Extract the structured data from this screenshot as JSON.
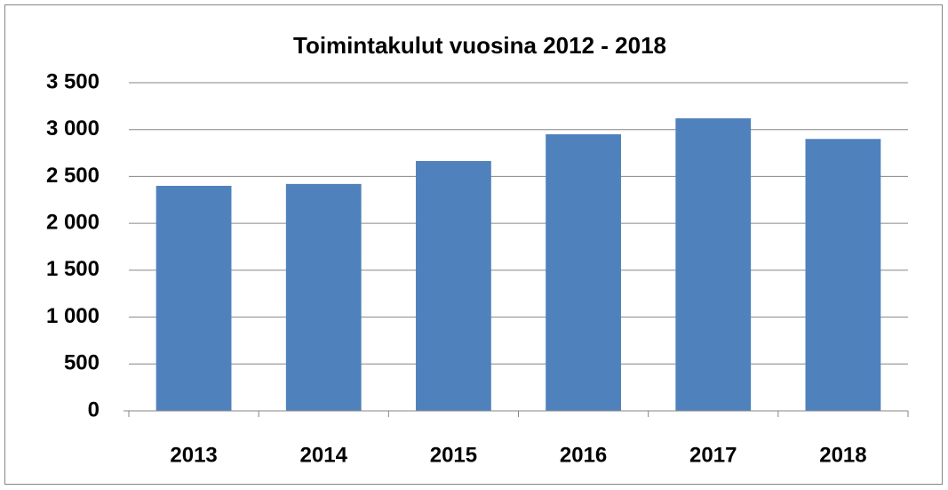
{
  "chart_data": {
    "type": "bar",
    "title": "Toimintakulut vuosina 2012 - 2018",
    "categories": [
      "2013",
      "2014",
      "2015",
      "2016",
      "2017",
      "2018"
    ],
    "values": [
      2400,
      2420,
      2665,
      2950,
      3120,
      2900
    ],
    "color": "#4f81bd",
    "ylim": [
      0,
      3500
    ],
    "yticks": [
      0,
      500,
      {
        "value": 1000,
        "label": "1 000"
      },
      {
        "value": 1500,
        "label": "1 500"
      },
      {
        "value": 2000,
        "label": "2 000"
      },
      {
        "value": 2500,
        "label": "2 500"
      },
      {
        "value": 3000,
        "label": "3 000"
      },
      {
        "value": 3500,
        "label": "3 500"
      }
    ],
    "grid": true
  }
}
